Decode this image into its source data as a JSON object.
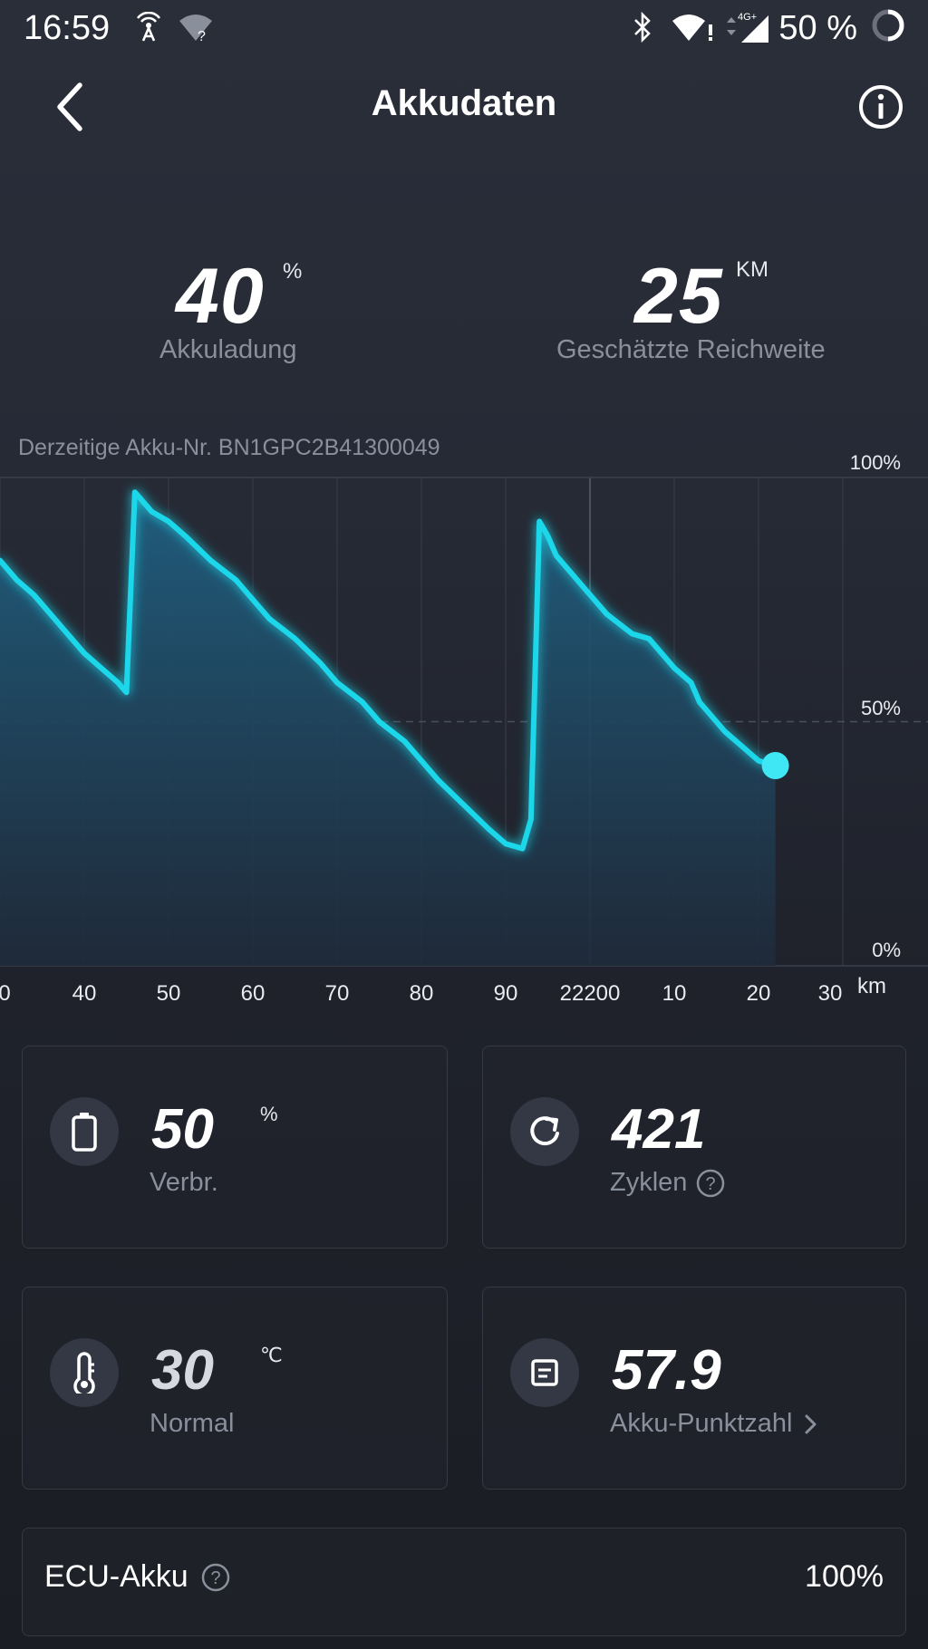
{
  "status_bar": {
    "time": "16:59",
    "battery": "50 %",
    "network": "4G+",
    "icons": [
      "hotspot-icon",
      "wifi-unknown-icon",
      "bluetooth-icon",
      "wifi-icon",
      "signal-icon",
      "battery-ring-icon"
    ]
  },
  "header": {
    "title": "Akkudaten",
    "back_icon": "chevron-left-icon",
    "info_icon": "info-icon"
  },
  "summary": {
    "charge_value": "40",
    "charge_unit": "%",
    "charge_label": "Akkuladung",
    "range_value": "25",
    "range_unit": "KM",
    "range_label": "Geschätzte Reichweite"
  },
  "serial_text": "Derzeitige Akku-Nr. BN1GPC2B41300049",
  "chart_data": {
    "type": "area",
    "x_unit": "km",
    "x_tick_labels": [
      "0",
      "40",
      "50",
      "60",
      "70",
      "80",
      "90",
      "22200",
      "10",
      "20",
      "30"
    ],
    "y_tick_labels": [
      "100%",
      "50%",
      "0%"
    ],
    "ylim": [
      0,
      100
    ],
    "xlim": [
      30,
      130
    ],
    "grid": true,
    "x": [
      30,
      32,
      34,
      36,
      38,
      40,
      42,
      44,
      45,
      46,
      47,
      48,
      50,
      52,
      55,
      58,
      60,
      62,
      65,
      68,
      70,
      73,
      75,
      78,
      80,
      82,
      85,
      88,
      90,
      92,
      93,
      94,
      95,
      96,
      98,
      100,
      102,
      105,
      107,
      108,
      110,
      112,
      113,
      114,
      116,
      118,
      120,
      122
    ],
    "y": [
      83,
      79,
      76,
      72,
      68,
      64,
      61,
      58,
      56,
      97,
      95,
      93,
      91,
      88,
      83,
      79,
      75,
      71,
      67,
      62,
      58,
      54,
      50,
      46,
      42,
      38,
      33,
      28,
      25,
      24,
      30,
      91,
      88,
      84,
      80,
      76,
      72,
      68,
      67,
      65,
      61,
      58,
      54,
      52,
      48,
      45,
      42,
      41
    ],
    "colors": {
      "line": "#1ad7ea",
      "fill_top": "#1f5f80",
      "fill_bottom": "#1f2a3a",
      "point": "#3fe7f5"
    }
  },
  "cards": [
    {
      "icon": "battery-icon",
      "value": "50",
      "unit": "%",
      "label": "Verbr.",
      "help": false,
      "chevron": false
    },
    {
      "icon": "refresh-icon",
      "value": "421",
      "unit": "",
      "label": "Zyklen",
      "help": true,
      "chevron": false
    },
    {
      "icon": "thermometer-icon",
      "value": "30",
      "unit": "℃",
      "label": "Normal",
      "help": false,
      "chevron": false
    },
    {
      "icon": "document-icon",
      "value": "57.9",
      "unit": "",
      "label": "Akku-Punktzahl",
      "help": false,
      "chevron": true
    }
  ],
  "ecu": {
    "label": "ECU-Akku",
    "value": "100%"
  }
}
